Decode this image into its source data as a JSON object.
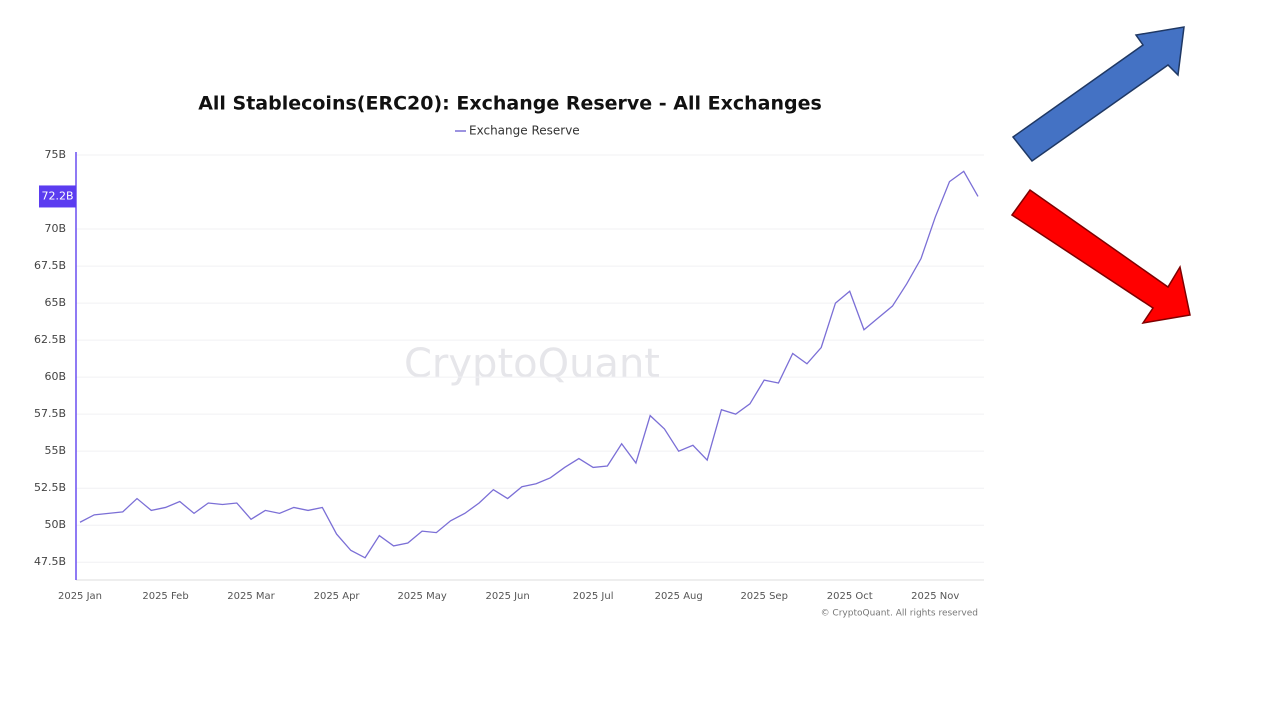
{
  "chart_data": {
    "type": "line",
    "title": "All Stablecoins(ERC20): Exchange Reserve - All Exchanges",
    "watermark": "CryptoQuant",
    "credit": "© CryptoQuant. All rights reserved",
    "categories": [
      "2025 Jan",
      null,
      null,
      null,
      null,
      null,
      "2025 Feb",
      null,
      null,
      null,
      null,
      null,
      "2025 Mar",
      null,
      null,
      null,
      null,
      null,
      "2025 Apr",
      null,
      null,
      null,
      null,
      null,
      "2025 May",
      null,
      null,
      null,
      null,
      null,
      "2025 Jun",
      null,
      null,
      null,
      null,
      null,
      "2025 Jul",
      null,
      null,
      null,
      null,
      null,
      "2025 Aug",
      null,
      null,
      null,
      null,
      null,
      "2025 Sep",
      null,
      null,
      null,
      null,
      null,
      "2025 Oct",
      null,
      null,
      null,
      null,
      null,
      "2025 Nov",
      null,
      null,
      null
    ],
    "series": [
      {
        "name": "Exchange Reserve",
        "color": "#7b6fd6",
        "values": [
          50.2,
          50.7,
          50.8,
          50.9,
          51.8,
          51.0,
          51.2,
          51.6,
          50.8,
          51.5,
          51.4,
          51.5,
          50.4,
          51.0,
          50.8,
          51.2,
          51.0,
          51.2,
          49.4,
          48.3,
          47.8,
          49.3,
          48.6,
          48.8,
          49.6,
          49.5,
          50.3,
          50.8,
          51.5,
          52.4,
          51.8,
          52.6,
          52.8,
          53.2,
          53.9,
          54.5,
          53.9,
          54.0,
          55.5,
          54.2,
          57.4,
          56.5,
          55.0,
          55.4,
          54.4,
          57.8,
          57.5,
          58.2,
          59.8,
          59.6,
          61.6,
          60.9,
          62.0,
          65.0,
          65.8,
          63.2,
          64.0,
          64.8,
          66.3,
          68.0,
          70.8,
          73.2,
          73.9,
          72.2
        ]
      }
    ],
    "ylim": [
      46.3,
      75
    ],
    "yticks": [
      {
        "value": 47.5,
        "label": "47.5B"
      },
      {
        "value": 50,
        "label": "50B"
      },
      {
        "value": 52.5,
        "label": "52.5B"
      },
      {
        "value": 55,
        "label": "55B"
      },
      {
        "value": 57.5,
        "label": "57.5B"
      },
      {
        "value": 60,
        "label": "60B"
      },
      {
        "value": 62.5,
        "label": "62.5B"
      },
      {
        "value": 65,
        "label": "65B"
      },
      {
        "value": 67.5,
        "label": "67.5B"
      },
      {
        "value": 70,
        "label": "70B"
      },
      {
        "value": 75,
        "label": "75B"
      }
    ],
    "current_value": {
      "value": 72.2,
      "label": "72.2B"
    },
    "grid": true
  }
}
